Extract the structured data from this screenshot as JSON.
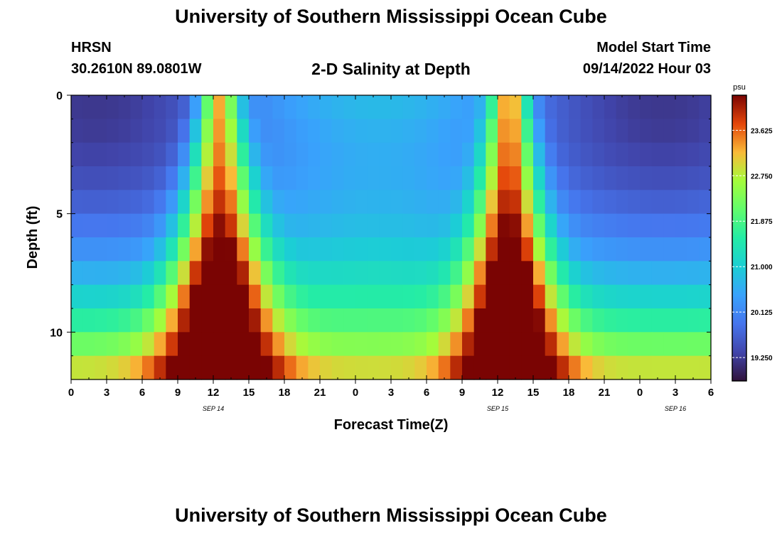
{
  "header": {
    "title": "University of Southern Mississippi Ocean Cube",
    "station": "HRSN",
    "coordinates": "30.2610N  89.0801W",
    "plot_title": "2-D Salinity at Depth",
    "model_start_label": "Model Start Time",
    "model_start_value": "09/14/2022 Hour 03"
  },
  "footer": {
    "title": "University of Southern Mississippi Ocean Cube"
  },
  "chart_data": {
    "type": "heatmap",
    "title": "2-D Salinity at Depth",
    "xlabel": "Forecast Time(Z)",
    "ylabel": "Depth (ft)",
    "x_range_hours": [
      0,
      54
    ],
    "x_ticks": [
      {
        "h": 0,
        "label": "0"
      },
      {
        "h": 3,
        "label": "3"
      },
      {
        "h": 6,
        "label": "6"
      },
      {
        "h": 9,
        "label": "9"
      },
      {
        "h": 12,
        "label": "12"
      },
      {
        "h": 15,
        "label": "15"
      },
      {
        "h": 18,
        "label": "18"
      },
      {
        "h": 21,
        "label": "21"
      },
      {
        "h": 24,
        "label": "0"
      },
      {
        "h": 27,
        "label": "3"
      },
      {
        "h": 30,
        "label": "6"
      },
      {
        "h": 33,
        "label": "9"
      },
      {
        "h": 36,
        "label": "12"
      },
      {
        "h": 39,
        "label": "15"
      },
      {
        "h": 42,
        "label": "18"
      },
      {
        "h": 45,
        "label": "21"
      },
      {
        "h": 48,
        "label": "0"
      },
      {
        "h": 51,
        "label": "3"
      },
      {
        "h": 54,
        "label": "6"
      }
    ],
    "date_labels": [
      {
        "h": 12,
        "label": "SEP 14"
      },
      {
        "h": 36,
        "label": "SEP 15"
      },
      {
        "h": 51,
        "label": "SEP 16"
      }
    ],
    "y_range_ft": [
      0,
      12
    ],
    "y_ticks": [
      {
        "v": 0,
        "label": "0"
      },
      {
        "v": 5,
        "label": "5"
      },
      {
        "v": 10,
        "label": "10"
      }
    ],
    "depth_layers_ft": [
      0.5,
      1.5,
      2.5,
      3.5,
      4.5,
      5.5,
      6.5,
      7.5,
      8.5,
      9.5,
      10.5,
      11.5
    ],
    "salinity_peaks": [
      {
        "center_h": 12.5,
        "surface_halfwidth_h": 1.5,
        "bottom_halfwidth_h": 5.0
      },
      {
        "center_h": 37.0,
        "surface_halfwidth_h": 1.5,
        "bottom_halfwidth_h": 4.5
      }
    ],
    "colorbar": {
      "unit": "psu",
      "min": 18.8,
      "max": 24.3,
      "ticks": [
        "23.625",
        "22.750",
        "21.875",
        "21.000",
        "20.125",
        "19.250"
      ]
    }
  }
}
